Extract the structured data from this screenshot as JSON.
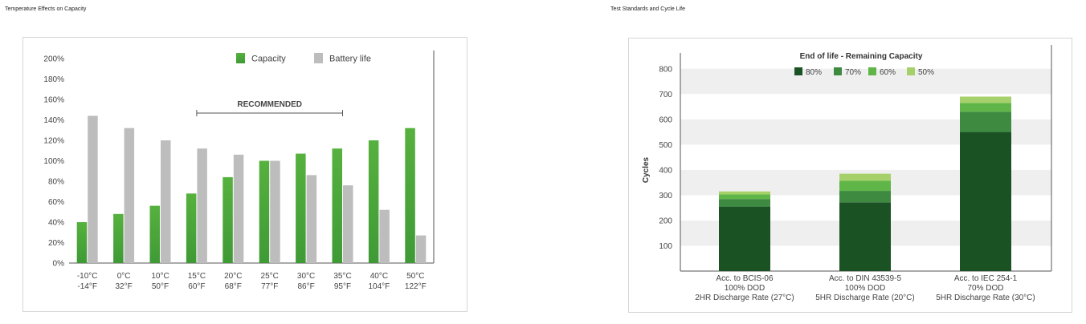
{
  "sections": {
    "left_title": "Temperature Effects on Capacity",
    "right_title": "Test Standards and Cycle Life"
  },
  "chart_data": [
    {
      "type": "bar",
      "title": "",
      "xlabel": "",
      "ylabel": "",
      "ylim": [
        0,
        200
      ],
      "yticks": [
        "0%",
        "20%",
        "40%",
        "60%",
        "80%",
        "100%",
        "120%",
        "140%",
        "160%",
        "180%",
        "200%"
      ],
      "categories": [
        [
          "-10°C",
          "-14°F"
        ],
        [
          "0°C",
          "32°F"
        ],
        [
          "10°C",
          "50°F"
        ],
        [
          "15°C",
          "60°F"
        ],
        [
          "20°C",
          "68°F"
        ],
        [
          "25°C",
          "77°F"
        ],
        [
          "30°C",
          "86°F"
        ],
        [
          "35°C",
          "95°F"
        ],
        [
          "40°C",
          "104°F"
        ],
        [
          "50°C",
          "122°F"
        ]
      ],
      "series": [
        {
          "name": "Capacity",
          "color": "#4fa83d",
          "values": [
            40,
            48,
            56,
            68,
            84,
            100,
            107,
            112,
            120,
            132
          ]
        },
        {
          "name": "Battery life",
          "color": "#bdbdbd",
          "values": [
            144,
            132,
            120,
            112,
            106,
            100,
            86,
            76,
            52,
            27
          ]
        }
      ],
      "annotation": {
        "label": "RECOMMENDED",
        "from_category": 3,
        "to_category": 7
      },
      "legend_position": "top-right",
      "grid": false
    },
    {
      "type": "bar",
      "stacked": true,
      "title": "End of life - Remaining Capacity",
      "xlabel": "",
      "ylabel": "Cycles",
      "ylim": [
        0,
        850
      ],
      "yticks": [
        100,
        200,
        300,
        400,
        500,
        600,
        700,
        800
      ],
      "categories": [
        [
          "Acc. to BCIS-06",
          "100% DOD",
          "2HR Discharge Rate (27°C)"
        ],
        [
          "Acc. to DIN 43539-5",
          "100% DOD",
          "5HR Discharge Rate (20°C)"
        ],
        [
          "Acc. to IEC 254-1",
          "70% DOD",
          "5HR Discharge Rate (30°C)"
        ]
      ],
      "series": [
        {
          "name": "80%",
          "color": "#1a5223",
          "values": [
            255,
            272,
            550
          ]
        },
        {
          "name": "70%",
          "color": "#3e8a40",
          "values": [
            30,
            45,
            80
          ]
        },
        {
          "name": "60%",
          "color": "#5fb548",
          "values": [
            18,
            40,
            35
          ]
        },
        {
          "name": "50%",
          "color": "#a6d16a",
          "values": [
            12,
            28,
            25
          ]
        }
      ],
      "legend_position": "top",
      "grid": "alternating bands"
    }
  ]
}
